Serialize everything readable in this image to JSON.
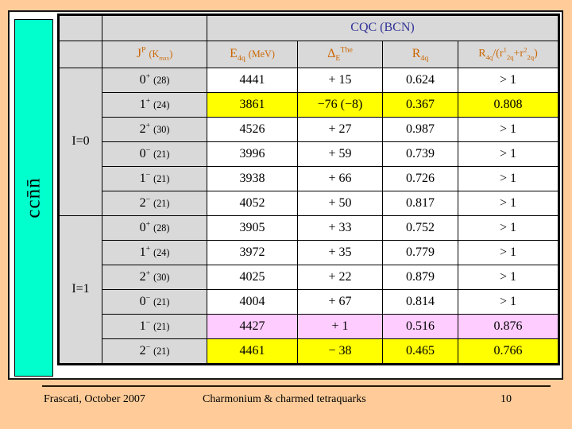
{
  "slide": {
    "footer": {
      "left": "Frascati, October 2007",
      "center": "Charmonium & charmed tetraquarks",
      "page_number": "10"
    }
  },
  "sidebar": {
    "label": "ccn̄n̄"
  },
  "table": {
    "title": "CQC (BCN)",
    "headers": {
      "jp": "J^{P} s{(K_{max})}",
      "e4q": "E_{4q} s{(MeV)}",
      "delta": "Δ_{E}^{The}",
      "r4q": "R_{4q}",
      "ratio": "R_{4q}/(r^{1}_{2q}+r^{2}_{2q})"
    },
    "groups": [
      {
        "label": "I=0",
        "rows": [
          {
            "jp": "0^{+} s{(28)}",
            "e4q": "4441",
            "delta": "+ 15",
            "r4q": "0.624",
            "ratio": "> 1",
            "highlight": "none"
          },
          {
            "jp": "1^{+} s{(24)}",
            "e4q": "3861",
            "delta": "−76 (−8)",
            "r4q": "0.367",
            "ratio": "0.808",
            "highlight": "yellow"
          },
          {
            "jp": "2^{+} s{(30)}",
            "e4q": "4526",
            "delta": "+ 27",
            "r4q": "0.987",
            "ratio": "> 1",
            "highlight": "none"
          },
          {
            "jp": "0^{−} s{(21)}",
            "e4q": "3996",
            "delta": "+ 59",
            "r4q": "0.739",
            "ratio": "> 1",
            "highlight": "none"
          },
          {
            "jp": "1^{−} s{(21)}",
            "e4q": "3938",
            "delta": "+ 66",
            "r4q": "0.726",
            "ratio": "> 1",
            "highlight": "none"
          },
          {
            "jp": "2^{−} s{(21)}",
            "e4q": "4052",
            "delta": "+ 50",
            "r4q": "0.817",
            "ratio": "> 1",
            "highlight": "none"
          }
        ]
      },
      {
        "label": "I=1",
        "rows": [
          {
            "jp": "0^{+} s{(28)}",
            "e4q": "3905",
            "delta": "+ 33",
            "r4q": "0.752",
            "ratio": "> 1",
            "highlight": "none"
          },
          {
            "jp": "1^{+} s{(24)}",
            "e4q": "3972",
            "delta": "+ 35",
            "r4q": "0.779",
            "ratio": "> 1",
            "highlight": "none"
          },
          {
            "jp": "2^{+} s{(30)}",
            "e4q": "4025",
            "delta": "+ 22",
            "r4q": "0.879",
            "ratio": "> 1",
            "highlight": "none"
          },
          {
            "jp": "0^{−} s{(21)}",
            "e4q": "4004",
            "delta": "+ 67",
            "r4q": "0.814",
            "ratio": "> 1",
            "highlight": "none"
          },
          {
            "jp": "1^{−} s{(21)}",
            "e4q": "4427",
            "delta": "+ 1",
            "r4q": "0.516",
            "ratio": "0.876",
            "highlight": "pink"
          },
          {
            "jp": "2^{−} s{(21)}",
            "e4q": "4461",
            "delta": "− 38",
            "r4q": "0.465",
            "ratio": "0.766",
            "highlight": "yellow"
          }
        ]
      }
    ]
  },
  "colors": {
    "background": "#FFCC99",
    "sidebar_cyan": "#00FFCC",
    "cell_gray": "#D9D9D9",
    "highlight_yellow": "#FFFF00",
    "highlight_pink": "#FFCCFF",
    "title_blue": "#333399",
    "header_orange": "#CC6600"
  }
}
